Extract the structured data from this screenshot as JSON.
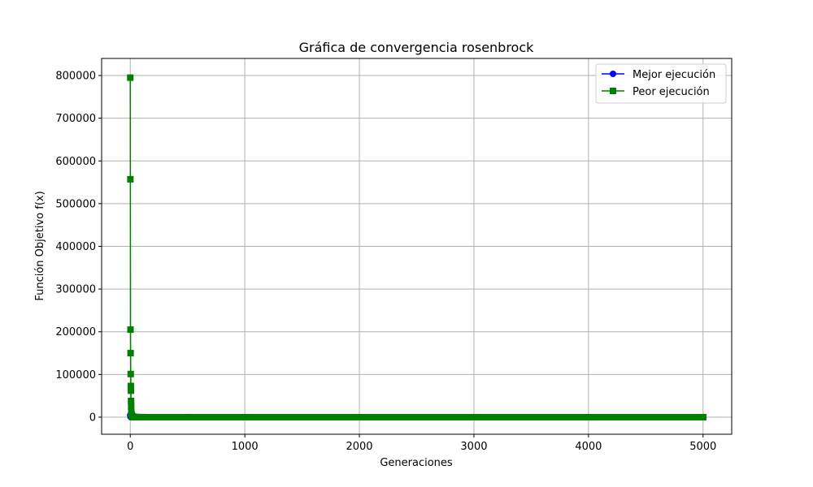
{
  "chart_data": {
    "type": "line",
    "title": "Gráfica de convergencia rosenbrock",
    "xlabel": "Generaciones",
    "ylabel": "Función Objetivo f(x)",
    "xlim": [
      -250,
      5250
    ],
    "ylim": [
      -40000,
      840000
    ],
    "xticks": [
      0,
      1000,
      2000,
      3000,
      4000,
      5000
    ],
    "xtick_labels": [
      "0",
      "1000",
      "2000",
      "3000",
      "4000",
      "5000"
    ],
    "yticks": [
      0,
      100000,
      200000,
      300000,
      400000,
      500000,
      600000,
      700000,
      800000
    ],
    "ytick_labels": [
      "0",
      "100000",
      "200000",
      "300000",
      "400000",
      "500000",
      "600000",
      "700000",
      "800000"
    ],
    "grid": true,
    "legend_position": "top-right",
    "series": [
      {
        "name": "Mejor ejecución",
        "color": "#0000ff",
        "marker": "circle",
        "x": [
          0,
          1,
          2,
          3,
          4,
          5,
          10,
          20,
          50,
          100,
          500,
          1000,
          2000,
          3000,
          4000,
          5000
        ],
        "y": [
          5000,
          3000,
          1500,
          800,
          400,
          200,
          50,
          10,
          2,
          1,
          0.5,
          0.3,
          0.2,
          0.1,
          0.05,
          0.01
        ]
      },
      {
        "name": "Peor ejecución",
        "color": "#008000",
        "marker": "square",
        "x": [
          0,
          1,
          2,
          3,
          4,
          5,
          6,
          7,
          8,
          9,
          10,
          12,
          15,
          20,
          30,
          50,
          100,
          500,
          1000,
          2000,
          3000,
          4000,
          5000
        ],
        "y": [
          795000,
          557000,
          205000,
          150000,
          101000,
          73000,
          62000,
          38000,
          25000,
          12000,
          8000,
          5000,
          3000,
          2000,
          1000,
          500,
          200,
          50,
          20,
          10,
          5,
          2,
          1
        ]
      }
    ]
  }
}
